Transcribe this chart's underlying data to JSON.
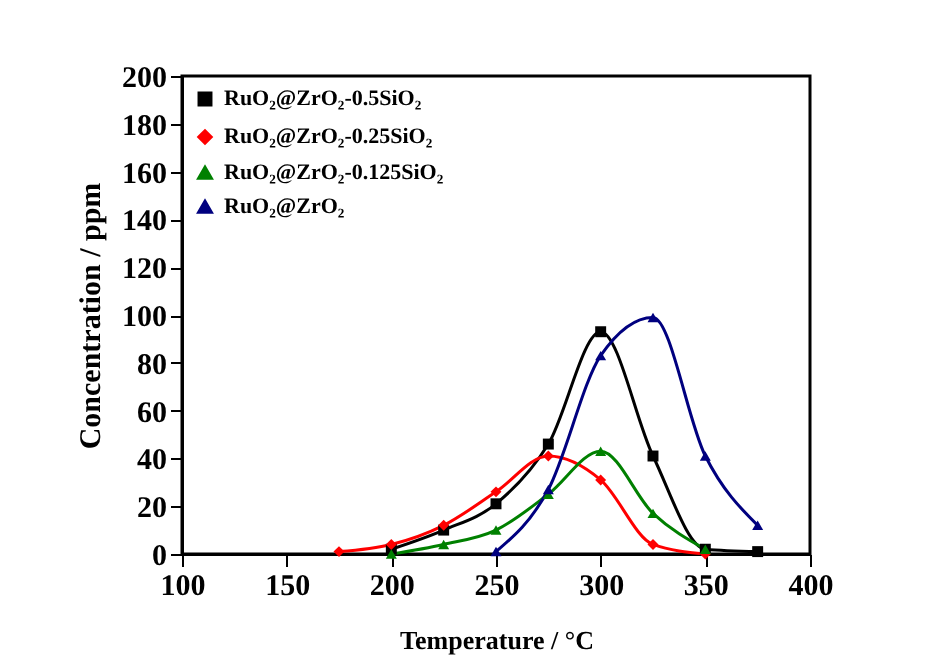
{
  "chart_data": {
    "type": "line",
    "xlabel": "Temperature / °C",
    "ylabel": "Concentration / ppm",
    "xlim": [
      100,
      400
    ],
    "xticks": [
      100,
      150,
      200,
      250,
      300,
      350,
      400
    ],
    "ylim": [
      0,
      200
    ],
    "yticks": [
      0,
      20,
      40,
      60,
      80,
      100,
      120,
      140,
      160,
      180,
      200
    ],
    "grid": false,
    "legend": "top left",
    "line_style": "solid",
    "series": [
      {
        "name": "RuO₂@ZrO₂-0.5SiO₂",
        "color": "#000000",
        "marker": "square",
        "x": [
          200,
          225,
          250,
          275,
          300,
          325,
          350,
          375
        ],
        "values": [
          2,
          10,
          21,
          46,
          93,
          41,
          2,
          1
        ]
      },
      {
        "name": "RuO₂@ZrO₂-0.25SiO₂",
        "color": "#ff0000",
        "marker": "diamond",
        "x": [
          175,
          200,
          225,
          250,
          275,
          300,
          325,
          350
        ],
        "values": [
          1,
          4,
          12,
          26,
          41,
          31,
          4,
          0
        ]
      },
      {
        "name": "RuO₂@ZrO₂-0.125SiO₂",
        "color": "#008000",
        "marker": "triangle",
        "x": [
          200,
          225,
          250,
          275,
          300,
          325,
          350
        ],
        "values": [
          0,
          4,
          10,
          25,
          43,
          17,
          2
        ]
      },
      {
        "name": "RuO₂@ZrO₂",
        "color": "#00007f",
        "marker": "triangle",
        "x": [
          250,
          275,
          300,
          325,
          350,
          375
        ],
        "values": [
          1,
          27,
          83,
          99,
          41,
          12
        ]
      }
    ]
  }
}
